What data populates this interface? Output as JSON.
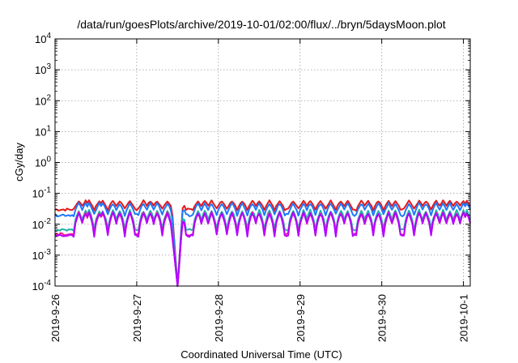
{
  "chart_data": {
    "type": "line",
    "title": "/data/run/goesPlots/archive/2019-10-01/02:00/flux/../bryn/5daysMoon.plot",
    "xlabel": "Coordinated Universal Time (UTC)",
    "ylabel": "cGy/day",
    "x_axis": {
      "kind": "date",
      "range": [
        "2019-09-26T00:00",
        "2019-10-01T02:00"
      ],
      "ticks": [
        "2019-9-26",
        "2019-9-27",
        "2019-9-28",
        "2019-9-29",
        "2019-9-30",
        "2019-10-1"
      ]
    },
    "y_axis": {
      "scale": "log",
      "range": [
        0.0001,
        10000
      ],
      "tick_bases": [
        "10",
        "10",
        "10",
        "10",
        "10",
        "10",
        "10",
        "10",
        "10"
      ],
      "tick_exponents": [
        "-4",
        "-3",
        "-2",
        "-1",
        "0",
        "1",
        "2",
        "3",
        "4"
      ]
    },
    "grid": true,
    "legend": "none",
    "notable_event": {
      "x": "2019-09-27T12:00",
      "min_value": 0.0001
    },
    "series": [
      {
        "color": "#e31a1c",
        "baseline": 0.03,
        "spike_peak": 0.06
      },
      {
        "color": "#1f78ff",
        "baseline": 0.02,
        "spike_peak": 0.05
      },
      {
        "color": "#20b2aa",
        "baseline": 0.0065,
        "spike_peak": 0.03
      },
      {
        "color": "#ff1493",
        "baseline": 0.0047,
        "spike_peak": 0.025
      },
      {
        "color": "#b400ff",
        "baseline": 0.0043,
        "spike_peak": 0.025
      }
    ],
    "spike_times": [
      "2019-09-26T07:00",
      "2019-09-26T09:00",
      "2019-09-26T10:00",
      "2019-09-26T13:00",
      "2019-09-26T14:00",
      "2019-09-26T17:00",
      "2019-09-26T19:00",
      "2019-09-26T22:00",
      "2019-09-27T02:00",
      "2019-09-27T04:00",
      "2019-09-27T06:00",
      "2019-09-27T09:00",
      "2019-09-27T13:00",
      "2019-09-27T18:00",
      "2019-09-27T20:00",
      "2019-09-27T22:00",
      "2019-09-28T01:00",
      "2019-09-28T04:00",
      "2019-09-28T07:00",
      "2019-09-28T10:00",
      "2019-09-28T12:00",
      "2019-09-28T15:00",
      "2019-09-28T18:00",
      "2019-09-28T22:00",
      "2019-09-29T01:00",
      "2019-09-29T03:00",
      "2019-09-29T06:00",
      "2019-09-29T09:00",
      "2019-09-29T12:00",
      "2019-09-29T14:00",
      "2019-09-29T18:00",
      "2019-09-29T20:00",
      "2019-09-29T23:00",
      "2019-09-30T02:00",
      "2019-09-30T04:00",
      "2019-09-30T08:00",
      "2019-09-30T11:00",
      "2019-09-30T13:00",
      "2019-09-30T16:00",
      "2019-09-30T18:00",
      "2019-09-30T20:00",
      "2019-09-30T22:00",
      "2019-10-01T00:00",
      "2019-10-01T01:00"
    ]
  }
}
